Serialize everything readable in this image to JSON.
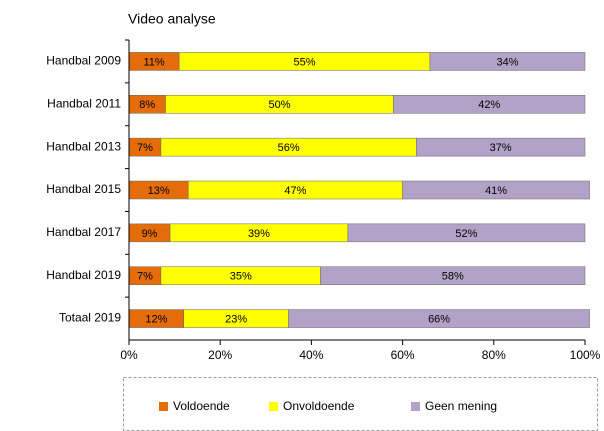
{
  "chart_data": {
    "type": "stacked_barh",
    "title": "Video analyse",
    "categories": [
      "Handbal 2009",
      "Handbal 2011",
      "Handbal 2013",
      "Handbal 2015",
      "Handbal 2017",
      "Handbal 2019",
      "Totaal 2019"
    ],
    "series": [
      {
        "name": "Voldoende",
        "color": "#e46c0a",
        "values": [
          11,
          8,
          7,
          13,
          9,
          7,
          12
        ],
        "value_labels": [
          "11%",
          "8%",
          "7%",
          "13%",
          "9%",
          "7%",
          "12%"
        ]
      },
      {
        "name": "Onvoldoende",
        "color": "#ffff00",
        "values": [
          55,
          50,
          56,
          47,
          39,
          35,
          23
        ],
        "value_labels": [
          "55%",
          "50%",
          "56%",
          "47%",
          "39%",
          "35%",
          "23%"
        ]
      },
      {
        "name": "Geen mening",
        "color": "#b3a2c7",
        "values": [
          34,
          42,
          37,
          41,
          52,
          58,
          66
        ],
        "value_labels": [
          "34%",
          "42%",
          "37%",
          "41%",
          "52%",
          "58%",
          "66%"
        ]
      }
    ],
    "xlim": [
      0,
      100
    ],
    "xticks": [
      {
        "value": 0,
        "label": "0%"
      },
      {
        "value": 20,
        "label": "20%"
      },
      {
        "value": 40,
        "label": "40%"
      },
      {
        "value": 60,
        "label": "60%"
      },
      {
        "value": 80,
        "label": "80%"
      },
      {
        "value": 100,
        "label": "100%"
      }
    ],
    "legend": "bottom"
  }
}
